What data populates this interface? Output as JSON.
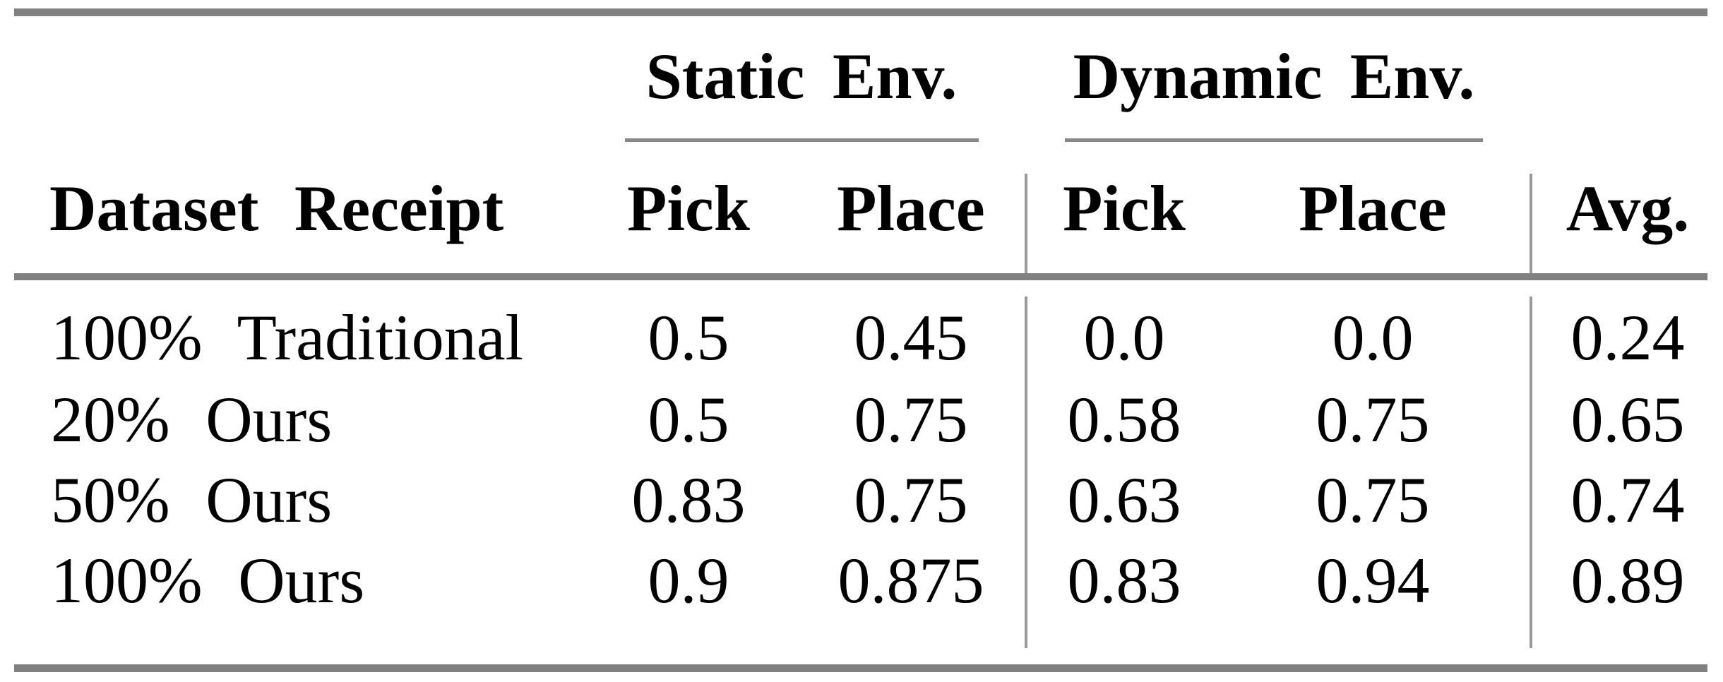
{
  "table": {
    "group_headers": [
      {
        "label": "Static Env."
      },
      {
        "label": "Dynamic Env."
      }
    ],
    "column_headers": {
      "label_col": "Dataset Receipt",
      "static_pick": "Pick",
      "static_place": "Place",
      "dynamic_pick": "Pick",
      "dynamic_place": "Place",
      "avg": "Avg."
    },
    "rows": [
      {
        "label": "100% Traditional",
        "values": [
          "0.5",
          "0.45",
          "0.0",
          "0.0",
          "0.24"
        ]
      },
      {
        "label": "20% Ours",
        "values": [
          "0.5",
          "0.75",
          "0.58",
          "0.75",
          "0.65"
        ]
      },
      {
        "label": "50% Ours",
        "values": [
          "0.83",
          "0.75",
          "0.63",
          "0.75",
          "0.74"
        ]
      },
      {
        "label": "100% Ours",
        "values": [
          "0.9",
          "0.875",
          "0.83",
          "0.94",
          "0.89"
        ]
      }
    ],
    "colors": {
      "rule": "#808080",
      "separator": "#9a9a9a",
      "text": "#000000",
      "background": "#ffffff"
    }
  }
}
